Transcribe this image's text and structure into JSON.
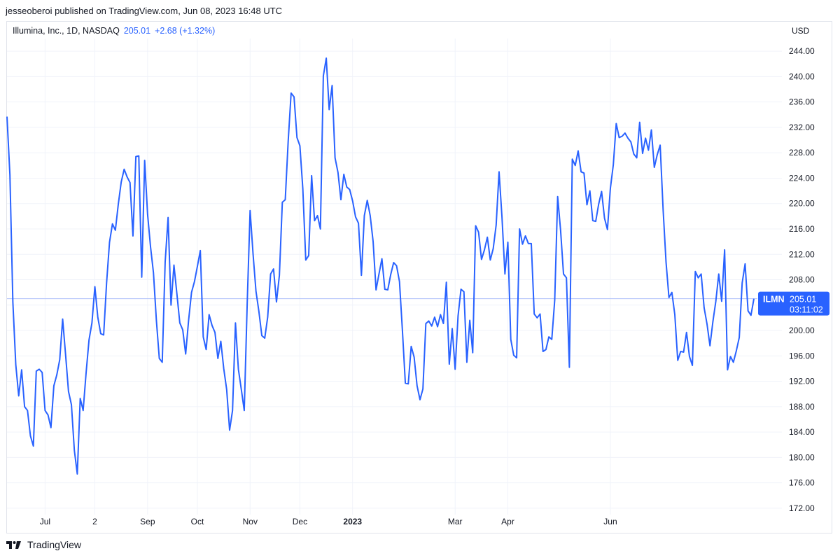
{
  "header": {
    "published": "jesseoberoi published on TradingView.com, Jun 08, 2023 16:48 UTC",
    "symbol": "Illumina, Inc., 1D, NASDAQ",
    "price": "205.01",
    "change": "+2.68 (+1.32%)",
    "currency": "USD"
  },
  "badge": {
    "ticker": "ILMN",
    "price": "205.01",
    "timer": "03:11:02"
  },
  "footer": {
    "brand": "TradingView"
  },
  "colors": {
    "line": "#2962ff",
    "grid": "#f0f3fa",
    "axis_text": "#131722"
  },
  "chart_data": {
    "type": "line",
    "title": "Illumina, Inc., 1D, NASDAQ",
    "ylabel": "USD",
    "ylim": [
      171,
      246
    ],
    "y_ticks": [
      "172.00",
      "176.00",
      "180.00",
      "184.00",
      "188.00",
      "192.00",
      "196.00",
      "200.00",
      "204.00",
      "208.00",
      "212.00",
      "216.00",
      "220.00",
      "224.00",
      "228.00",
      "232.00",
      "236.00",
      "240.00",
      "244.00"
    ],
    "x_ticks": [
      {
        "label": "Jul",
        "index": 13,
        "bold": false
      },
      {
        "label": "2",
        "index": 30,
        "bold": false
      },
      {
        "label": "Sep",
        "index": 48,
        "bold": false
      },
      {
        "label": "Oct",
        "index": 65,
        "bold": false
      },
      {
        "label": "Nov",
        "index": 83,
        "bold": false
      },
      {
        "label": "Dec",
        "index": 100,
        "bold": false
      },
      {
        "label": "2023",
        "index": 118,
        "bold": true
      },
      {
        "label": "Mar",
        "index": 153,
        "bold": false
      },
      {
        "label": "Apr",
        "index": 171,
        "bold": false
      },
      {
        "label": "Jun",
        "index": 206,
        "bold": false
      }
    ],
    "last_value": 205.01,
    "series": [
      {
        "name": "ILMN",
        "values": [
          233.7,
          224.5,
          204.5,
          194.6,
          189.7,
          193.8,
          188.0,
          187.4,
          183.4,
          181.8,
          193.6,
          193.9,
          193.4,
          187.4,
          186.7,
          184.7,
          191.3,
          193.0,
          195.4,
          201.8,
          196.2,
          190.4,
          188.3,
          181.1,
          177.4,
          189.3,
          187.4,
          193.3,
          198.5,
          201.2,
          206.9,
          202.1,
          199.5,
          199.3,
          207.5,
          213.9,
          216.8,
          215.8,
          219.9,
          223.4,
          225.4,
          224.2,
          223.3,
          214.9,
          227.4,
          227.5,
          208.4,
          226.8,
          218.3,
          213.2,
          209.1,
          201.6,
          195.6,
          195.0,
          210.8,
          217.8,
          204.0,
          210.3,
          205.8,
          201.2,
          200.1,
          196.3,
          201.6,
          206.0,
          207.7,
          210.1,
          212.6,
          199.0,
          197.0,
          202.5,
          200.8,
          199.7,
          195.6,
          198.3,
          194.0,
          190.7,
          184.3,
          187.4,
          201.2,
          193.9,
          190.7,
          187.4,
          204.1,
          218.9,
          212.1,
          206.2,
          203.0,
          199.2,
          198.8,
          202.1,
          208.9,
          209.7,
          204.5,
          208.7,
          220.2,
          220.6,
          229.8,
          237.4,
          236.8,
          230.4,
          229.1,
          222.3,
          211.1,
          211.8,
          224.4,
          217.3,
          218.1,
          216.0,
          240.1,
          242.9,
          234.8,
          238.6,
          227.2,
          224.9,
          220.6,
          224.6,
          222.6,
          222.2,
          220.4,
          217.9,
          216.9,
          208.7,
          218.1,
          220.5,
          218.1,
          214.0,
          206.4,
          208.9,
          211.3,
          206.5,
          206.4,
          208.8,
          210.7,
          210.2,
          207.7,
          200.0,
          191.7,
          191.6,
          197.5,
          195.8,
          191.3,
          189.1,
          190.8,
          201.1,
          201.5,
          200.7,
          202.1,
          200.6,
          202.5,
          201.1,
          207.6,
          194.7,
          200.3,
          193.9,
          202.3,
          206.5,
          206.1,
          195.0,
          201.6,
          196.5,
          216.5,
          215.5,
          211.2,
          212.7,
          214.7,
          211.1,
          212.9,
          216.6,
          225.0,
          217.8,
          208.9,
          213.9,
          198.6,
          196.1,
          195.7,
          216.0,
          213.6,
          214.9,
          213.7,
          213.7,
          202.6,
          202.0,
          202.6,
          196.7,
          197.0,
          199.0,
          198.6,
          204.8,
          221.1,
          215.8,
          208.9,
          208.3,
          194.2,
          227.0,
          226.0,
          228.3,
          225.0,
          224.8,
          219.8,
          222.0,
          217.3,
          217.2,
          219.9,
          221.9,
          217.7,
          215.9,
          222.4,
          226.1,
          232.6,
          230.4,
          230.6,
          231.1,
          230.3,
          229.7,
          227.8,
          227.2,
          232.8,
          227.9,
          230.3,
          228.4,
          231.6,
          225.7,
          227.7,
          229.2,
          219.1,
          210.8,
          205.2,
          206.0,
          202.5,
          195.3,
          196.7,
          196.6,
          199.7,
          195.9,
          194.5,
          209.3,
          208.3,
          208.9,
          203.6,
          201.0,
          197.6,
          201.4,
          204.6,
          208.9,
          204.6,
          212.7,
          193.8,
          195.9,
          195.0,
          196.8,
          198.9,
          207.5,
          210.5,
          203.1,
          202.4,
          205.0
        ]
      }
    ]
  }
}
